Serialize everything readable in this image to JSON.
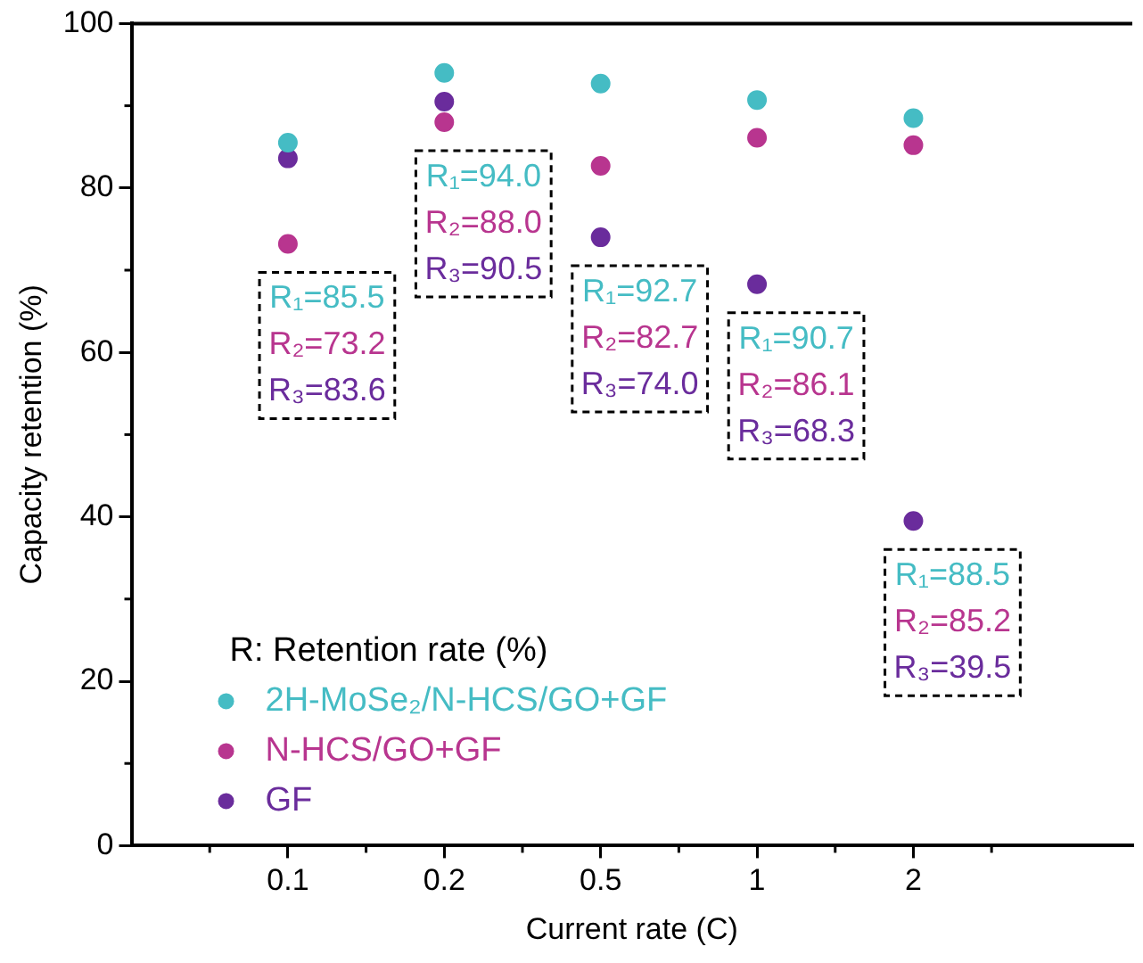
{
  "chart_data": {
    "type": "scatter",
    "xlabel": "Current rate (C)",
    "ylabel": "Capacity retention (%)",
    "legend_title": "R: Retention rate (%)",
    "categories": [
      "0.1",
      "0.2",
      "0.5",
      "1",
      "2"
    ],
    "series": [
      {
        "name": "2H-MoSe₂/N-HCS/GO+GF",
        "color": "#45bcc4",
        "values": [
          85.5,
          94.0,
          92.7,
          90.7,
          88.5
        ]
      },
      {
        "name": "N-HCS/GO+GF",
        "color": "#b8358f",
        "values": [
          73.2,
          88.0,
          82.7,
          86.1,
          85.2
        ]
      },
      {
        "name": "GF",
        "color": "#6a2c9c",
        "values": [
          83.6,
          90.5,
          74.0,
          68.3,
          39.5
        ]
      }
    ],
    "annotations": [
      "R₁=85.5\nR₂=73.2\nR₃=83.6",
      "R₁=94.0\nR₂=88.0\nR₃=90.5",
      "R₁=92.7\nR₂=82.7\nR₃=74.0",
      "R₁=90.7\nR₂=86.1\nR₃=68.3",
      "R₁=88.5\nR₂=85.2\nR₃=39.5"
    ],
    "ylim": [
      0,
      100
    ],
    "yticks": [
      0,
      20,
      40,
      60,
      80,
      100
    ],
    "grid": false,
    "legend": "bottom left",
    "marker": "circle"
  }
}
